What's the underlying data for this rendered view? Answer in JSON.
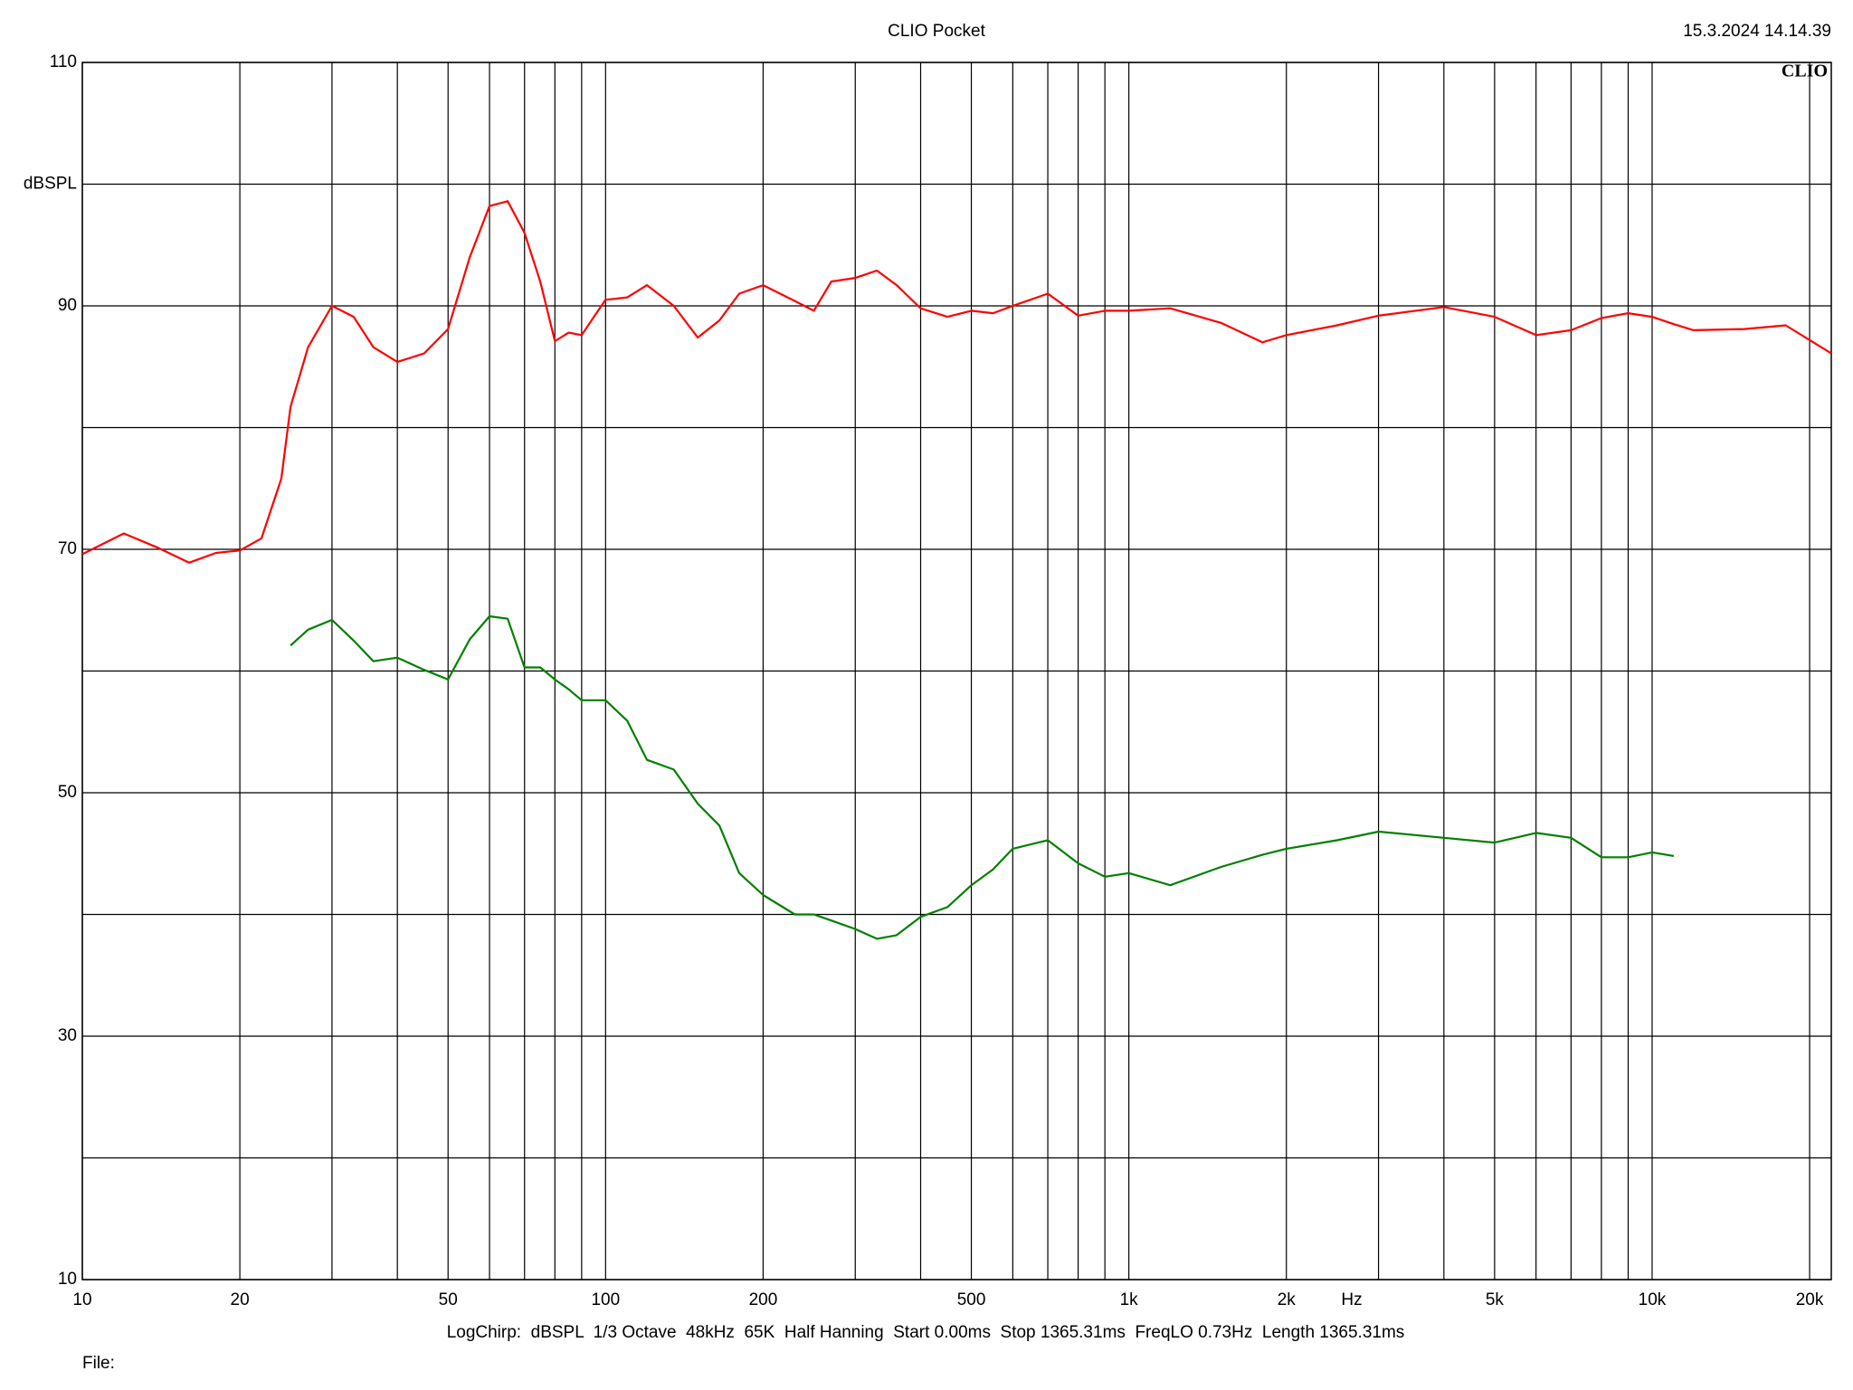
{
  "chart_data": {
    "type": "line",
    "title": "CLIO Pocket",
    "timestamp": "15.3.2024 14.14.39",
    "logo": "CLIO",
    "y_label": "dBSPL",
    "x_label": "Hz",
    "footer": "LogChirp:  dBSPL  1/3 Octave  48kHz  65K  Half Hanning  Start 0.00ms  Stop 1365.31ms  FreqLO 0.73Hz  Length 1365.31ms",
    "file_label": "File:",
    "x_log": true,
    "grid": true,
    "xlim": [
      10,
      22000
    ],
    "ylim": [
      10,
      110
    ],
    "xticks": [
      10,
      20,
      50,
      100,
      200,
      500,
      {
        "value": 1000,
        "label": "1k"
      },
      {
        "value": 2000,
        "label": "2k"
      },
      {
        "value": 5000,
        "label": "5k"
      },
      {
        "value": 10000,
        "label": "10k"
      },
      {
        "value": 20000,
        "label": "20k"
      }
    ],
    "xminorticks": [
      30,
      40,
      60,
      70,
      80,
      90,
      300,
      400,
      600,
      700,
      800,
      900,
      3000,
      4000,
      6000,
      7000,
      8000,
      9000
    ],
    "yticks": [
      10,
      30,
      50,
      70,
      90,
      110
    ],
    "yminorticks": [
      20,
      40,
      60,
      80,
      100
    ],
    "x": [
      10,
      12,
      14,
      16,
      18,
      20,
      22,
      24,
      25,
      27,
      30,
      33,
      36,
      40,
      45,
      50,
      55,
      60,
      65,
      70,
      75,
      80,
      85,
      90,
      95,
      100,
      110,
      120,
      135,
      150,
      165,
      180,
      200,
      230,
      250,
      270,
      300,
      330,
      360,
      400,
      450,
      500,
      550,
      600,
      700,
      800,
      900,
      1000,
      1200,
      1500,
      1800,
      2000,
      2500,
      3000,
      4000,
      5000,
      6000,
      7000,
      8000,
      9000,
      10000,
      11000,
      12000,
      15000,
      18000,
      22000
    ],
    "series": [
      {
        "color": "#ff0000",
        "values": [
          69.6,
          71.3,
          70.1,
          68.9,
          69.7,
          69.9,
          70.9,
          75.8,
          81.7,
          86.6,
          90.0,
          89.1,
          86.6,
          85.4,
          86.1,
          88.1,
          94.0,
          98.2,
          98.6,
          96.0,
          92.0,
          87.1,
          87.8,
          87.6,
          89.1,
          90.5,
          90.7,
          91.7,
          90.0,
          87.4,
          88.8,
          91.0,
          91.7,
          90.4,
          89.6,
          92.0,
          92.3,
          92.9,
          91.7,
          89.8,
          89.1,
          89.6,
          89.4,
          90.0,
          91.0,
          89.2,
          89.6,
          89.6,
          89.8,
          88.6,
          87.0,
          87.6,
          88.4,
          89.2,
          89.9,
          89.1,
          87.6,
          88.0,
          89.0,
          89.4,
          89.1,
          88.5,
          88.0,
          88.1,
          88.4,
          86.1
        ]
      },
      {
        "color": "#008000",
        "values": [
          null,
          null,
          null,
          null,
          null,
          null,
          null,
          null,
          62.1,
          63.4,
          64.2,
          62.5,
          60.8,
          61.1,
          60.1,
          59.3,
          62.6,
          64.5,
          64.3,
          60.3,
          60.3,
          59.3,
          58.5,
          57.6,
          57.6,
          57.6,
          55.9,
          52.7,
          51.9,
          49.1,
          47.3,
          43.4,
          41.6,
          40.0,
          40.0,
          39.5,
          38.8,
          38.0,
          38.3,
          39.8,
          40.6,
          42.4,
          43.7,
          45.4,
          46.1,
          44.2,
          43.1,
          43.4,
          42.4,
          43.9,
          44.9,
          45.4,
          46.1,
          46.8,
          46.3,
          45.9,
          46.7,
          46.3,
          44.7,
          44.7,
          45.1,
          44.8,
          null,
          null,
          null,
          null
        ]
      }
    ]
  }
}
